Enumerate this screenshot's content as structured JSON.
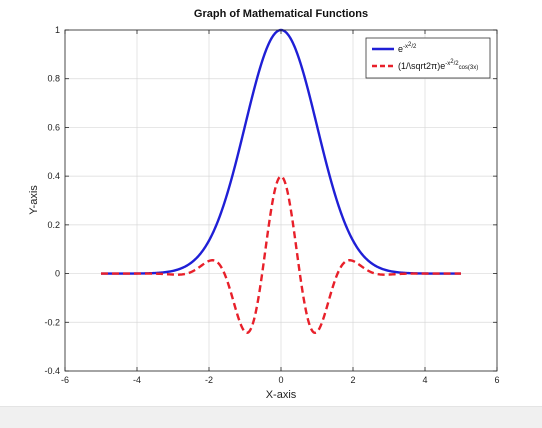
{
  "chart_data": {
    "type": "line",
    "title": "Graph of Mathematical Functions",
    "xlabel": "X-axis",
    "ylabel": "Y-axis",
    "xlim": [
      -6,
      6
    ],
    "ylim": [
      -0.4,
      1
    ],
    "xticks": [
      -6,
      -4,
      -2,
      0,
      2,
      4,
      6
    ],
    "yticks": [
      -0.4,
      -0.2,
      0,
      0.2,
      0.4,
      0.6,
      0.8,
      1
    ],
    "grid": true,
    "legend_position": "top-right",
    "x_range_of_series": [
      -5,
      5
    ],
    "series": [
      {
        "name": "e^{-x^2/2}",
        "legend_parts": {
          "base": "e",
          "sup": "-x",
          "sup2": "2",
          "rest": "/2"
        },
        "color": "#1f1fd6",
        "line_style": "solid",
        "x": [
          -5,
          -4.5,
          -4,
          -3.5,
          -3,
          -2.5,
          -2,
          -1.5,
          -1,
          -0.5,
          0,
          0.5,
          1,
          1.5,
          2,
          2.5,
          3,
          3.5,
          4,
          4.5,
          5
        ],
        "y": [
          0.0,
          0.0,
          0.0003,
          0.0022,
          0.0111,
          0.0439,
          0.1353,
          0.3247,
          0.6065,
          0.8825,
          1.0,
          0.8825,
          0.6065,
          0.3247,
          0.1353,
          0.0439,
          0.0111,
          0.0022,
          0.0003,
          0.0,
          0.0
        ]
      },
      {
        "name": "(1/\\sqrt2π)e^{-x^2/2}cos(3x)",
        "legend_parts": {
          "base": "(1/\\sqrt2π)e",
          "sup": "-x",
          "sup2": "2",
          "rest": "/2",
          "tail": "cos(3x)"
        },
        "color": "#e8202a",
        "line_style": "dashed",
        "x": [
          -5,
          -4.5,
          -4,
          -3.5,
          -3,
          -2.5,
          -2,
          -1.5,
          -1,
          -0.5,
          0,
          0.5,
          1,
          1.5,
          2,
          2.5,
          3,
          3.5,
          4,
          4.5,
          5
        ],
        "y": [
          0.0,
          0.0,
          0.0001,
          -0.0004,
          -0.004,
          0.0061,
          0.052,
          -0.0272,
          -0.2396,
          0.0249,
          0.3989,
          0.0249,
          -0.2396,
          -0.0272,
          0.052,
          0.0061,
          -0.004,
          -0.0004,
          0.0001,
          0.0,
          0.0
        ]
      }
    ]
  }
}
